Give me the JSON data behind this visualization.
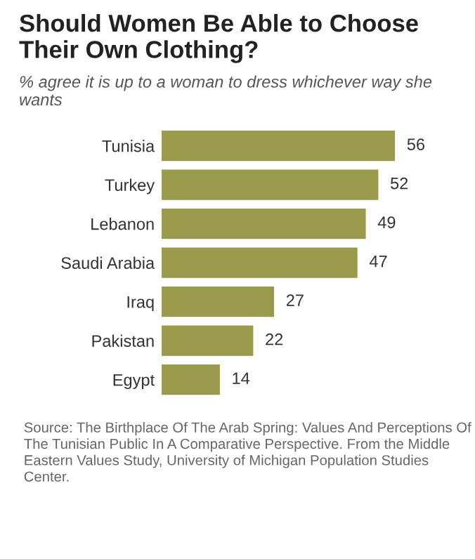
{
  "chart_data": {
    "type": "bar",
    "orientation": "horizontal",
    "title": "Should Women Be Able to Choose Their Own Clothing?",
    "subtitle": "% agree it is up to a woman to dress whichever way she wants",
    "categories": [
      "Tunisia",
      "Turkey",
      "Lebanon",
      "Saudi Arabia",
      "Iraq",
      "Pakistan",
      "Egypt"
    ],
    "values": [
      56,
      52,
      49,
      47,
      27,
      22,
      14
    ],
    "color": "#9a9a4c",
    "data_labels": true,
    "grid": false,
    "legend": false,
    "annotations": [
      "Source: The Birthplace Of The Arab Spring: Values And Perceptions Of The Tunisian Public In A Comparative Perspective. From the Middle Eastern Values Study, University of Michigan Population Studies Center."
    ]
  }
}
